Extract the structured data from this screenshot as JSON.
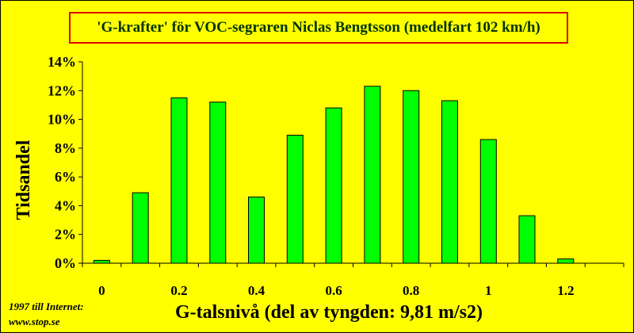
{
  "chart_data": {
    "type": "bar",
    "title": "'G-krafter' för VOC-segraren Niclas Bengtsson (medelfart 102 km/h)",
    "xlabel": "G-talsnivå (del av tyngden: 9,81 m/s2)",
    "ylabel": "Tidsandel",
    "x": [
      0,
      0.1,
      0.2,
      0.3,
      0.4,
      0.5,
      0.6,
      0.7,
      0.8,
      0.9,
      1.0,
      1.1,
      1.2,
      1.3
    ],
    "values": [
      0.2,
      4.9,
      11.5,
      11.2,
      4.6,
      8.9,
      10.8,
      12.3,
      12.0,
      11.3,
      8.6,
      3.3,
      0.3,
      0.0
    ],
    "x_tick_labels": [
      "0",
      "0.2",
      "0.4",
      "0.6",
      "0.8",
      "1",
      "1.2"
    ],
    "x_tick_values": [
      0,
      0.2,
      0.4,
      0.6,
      0.8,
      1.0,
      1.2
    ],
    "y_tick_labels": [
      "0%",
      "2%",
      "4%",
      "6%",
      "8%",
      "10%",
      "12%",
      "14%"
    ],
    "y_tick_values": [
      0,
      2,
      4,
      6,
      8,
      10,
      12,
      14
    ],
    "ylim": [
      0,
      14
    ],
    "grid": false,
    "legend": "none",
    "colors": {
      "bar": "#00ff00",
      "background": "#ffff00",
      "title_border": "#e00000",
      "title_text": "#003300"
    }
  },
  "credit": {
    "line1": "1997 till Internet:",
    "line2": "www.stop.se"
  }
}
